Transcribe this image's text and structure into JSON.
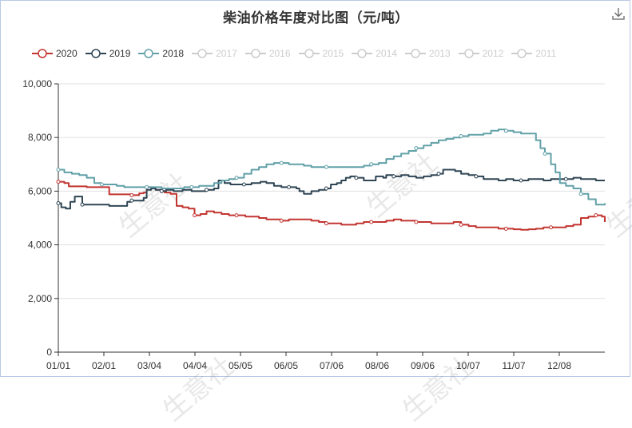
{
  "title": "柴油价格年度对比图（元/吨）",
  "toolbox": {
    "icon": "download-icon"
  },
  "watermark": "生意社",
  "colors": {
    "2020": "#c23531",
    "2019": "#2f4554",
    "2018": "#61a0a8",
    "inactive": "#cccccc"
  },
  "legend": [
    {
      "label": "2020",
      "active": true
    },
    {
      "label": "2019",
      "active": true
    },
    {
      "label": "2018",
      "active": true
    },
    {
      "label": "2017",
      "active": false
    },
    {
      "label": "2016",
      "active": false
    },
    {
      "label": "2015",
      "active": false
    },
    {
      "label": "2014",
      "active": false
    },
    {
      "label": "2013",
      "active": false
    },
    {
      "label": "2012",
      "active": false
    },
    {
      "label": "2011",
      "active": false
    }
  ],
  "chart_data": {
    "type": "line",
    "title": "柴油价格年度对比图（元/吨）",
    "xlabel": "",
    "ylabel": "",
    "x_ticks": [
      "01/01",
      "02/01",
      "03/04",
      "04/04",
      "05/05",
      "06/05",
      "07/06",
      "08/06",
      "09/06",
      "10/07",
      "11/07",
      "12/08"
    ],
    "x_range_days": [
      1,
      366
    ],
    "y_ticks": [
      "0",
      "2,000",
      "4,000",
      "6,000",
      "8,000",
      "10,000"
    ],
    "ylim": [
      0,
      10000
    ],
    "grid": true,
    "legend_position": "top",
    "series": [
      {
        "name": "2020",
        "points": [
          [
            1,
            6350
          ],
          [
            5,
            6300
          ],
          [
            8,
            6180
          ],
          [
            20,
            6150
          ],
          [
            32,
            6150
          ],
          [
            35,
            5880
          ],
          [
            50,
            5850
          ],
          [
            55,
            5920
          ],
          [
            58,
            5950
          ],
          [
            60,
            6150
          ],
          [
            63,
            6100
          ],
          [
            66,
            6050
          ],
          [
            70,
            6000
          ],
          [
            72,
            5950
          ],
          [
            76,
            5900
          ],
          [
            80,
            5450
          ],
          [
            84,
            5400
          ],
          [
            88,
            5350
          ],
          [
            92,
            5100
          ],
          [
            96,
            5150
          ],
          [
            100,
            5250
          ],
          [
            105,
            5200
          ],
          [
            110,
            5150
          ],
          [
            115,
            5100
          ],
          [
            120,
            5100
          ],
          [
            126,
            5050
          ],
          [
            130,
            5050
          ],
          [
            135,
            5000
          ],
          [
            140,
            4950
          ],
          [
            145,
            4950
          ],
          [
            150,
            4900
          ],
          [
            155,
            4950
          ],
          [
            160,
            4950
          ],
          [
            165,
            4950
          ],
          [
            170,
            4900
          ],
          [
            175,
            4850
          ],
          [
            180,
            4800
          ],
          [
            185,
            4800
          ],
          [
            190,
            4750
          ],
          [
            195,
            4750
          ],
          [
            200,
            4800
          ],
          [
            205,
            4850
          ],
          [
            210,
            4850
          ],
          [
            215,
            4850
          ],
          [
            220,
            4900
          ],
          [
            225,
            4950
          ],
          [
            230,
            4900
          ],
          [
            235,
            4900
          ],
          [
            240,
            4850
          ],
          [
            245,
            4850
          ],
          [
            250,
            4800
          ],
          [
            255,
            4800
          ],
          [
            260,
            4800
          ],
          [
            265,
            4850
          ],
          [
            270,
            4750
          ],
          [
            275,
            4700
          ],
          [
            280,
            4650
          ],
          [
            285,
            4650
          ],
          [
            290,
            4650
          ],
          [
            295,
            4600
          ],
          [
            300,
            4600
          ],
          [
            305,
            4580
          ],
          [
            310,
            4560
          ],
          [
            315,
            4580
          ],
          [
            320,
            4600
          ],
          [
            325,
            4650
          ],
          [
            330,
            4650
          ],
          [
            335,
            4650
          ],
          [
            340,
            4700
          ],
          [
            345,
            4750
          ],
          [
            350,
            5000
          ],
          [
            355,
            5050
          ],
          [
            360,
            5100
          ],
          [
            364,
            5050
          ],
          [
            366,
            4850
          ]
        ]
      },
      {
        "name": "2019",
        "points": [
          [
            1,
            5550
          ],
          [
            3,
            5400
          ],
          [
            6,
            5350
          ],
          [
            9,
            5600
          ],
          [
            12,
            5800
          ],
          [
            15,
            5800
          ],
          [
            17,
            5500
          ],
          [
            24,
            5500
          ],
          [
            31,
            5500
          ],
          [
            35,
            5450
          ],
          [
            45,
            5450
          ],
          [
            47,
            5600
          ],
          [
            50,
            5650
          ],
          [
            55,
            5650
          ],
          [
            58,
            5750
          ],
          [
            60,
            6050
          ],
          [
            63,
            6100
          ],
          [
            66,
            6050
          ],
          [
            70,
            6000
          ],
          [
            73,
            6050
          ],
          [
            78,
            6000
          ],
          [
            84,
            6050
          ],
          [
            90,
            6000
          ],
          [
            95,
            6000
          ],
          [
            100,
            6050
          ],
          [
            105,
            6100
          ],
          [
            108,
            6400
          ],
          [
            112,
            6300
          ],
          [
            116,
            6250
          ],
          [
            120,
            6250
          ],
          [
            125,
            6250
          ],
          [
            130,
            6300
          ],
          [
            136,
            6350
          ],
          [
            140,
            6300
          ],
          [
            145,
            6200
          ],
          [
            150,
            6150
          ],
          [
            155,
            6150
          ],
          [
            160,
            6100
          ],
          [
            162,
            6000
          ],
          [
            165,
            5900
          ],
          [
            170,
            6000
          ],
          [
            175,
            6050
          ],
          [
            180,
            6100
          ],
          [
            183,
            6250
          ],
          [
            187,
            6300
          ],
          [
            190,
            6400
          ],
          [
            193,
            6500
          ],
          [
            196,
            6550
          ],
          [
            200,
            6500
          ],
          [
            205,
            6400
          ],
          [
            210,
            6400
          ],
          [
            213,
            6550
          ],
          [
            218,
            6500
          ],
          [
            220,
            6600
          ],
          [
            225,
            6550
          ],
          [
            230,
            6600
          ],
          [
            235,
            6550
          ],
          [
            240,
            6500
          ],
          [
            245,
            6550
          ],
          [
            250,
            6600
          ],
          [
            255,
            6650
          ],
          [
            258,
            6800
          ],
          [
            262,
            6800
          ],
          [
            266,
            6750
          ],
          [
            270,
            6650
          ],
          [
            275,
            6600
          ],
          [
            280,
            6550
          ],
          [
            285,
            6450
          ],
          [
            290,
            6450
          ],
          [
            295,
            6400
          ],
          [
            300,
            6450
          ],
          [
            305,
            6400
          ],
          [
            310,
            6400
          ],
          [
            315,
            6450
          ],
          [
            320,
            6450
          ],
          [
            325,
            6400
          ],
          [
            330,
            6450
          ],
          [
            335,
            6450
          ],
          [
            340,
            6450
          ],
          [
            345,
            6500
          ],
          [
            350,
            6450
          ],
          [
            355,
            6450
          ],
          [
            360,
            6400
          ],
          [
            366,
            6400
          ]
        ]
      },
      {
        "name": "2018",
        "points": [
          [
            1,
            6800
          ],
          [
            5,
            6700
          ],
          [
            10,
            6650
          ],
          [
            15,
            6600
          ],
          [
            20,
            6500
          ],
          [
            25,
            6300
          ],
          [
            30,
            6250
          ],
          [
            35,
            6250
          ],
          [
            40,
            6200
          ],
          [
            45,
            6150
          ],
          [
            50,
            6150
          ],
          [
            55,
            6150
          ],
          [
            60,
            6150
          ],
          [
            65,
            6150
          ],
          [
            70,
            6100
          ],
          [
            75,
            6100
          ],
          [
            80,
            6100
          ],
          [
            85,
            6150
          ],
          [
            90,
            6150
          ],
          [
            95,
            6200
          ],
          [
            100,
            6200
          ],
          [
            105,
            6300
          ],
          [
            110,
            6400
          ],
          [
            115,
            6450
          ],
          [
            120,
            6500
          ],
          [
            125,
            6650
          ],
          [
            130,
            6800
          ],
          [
            135,
            6900
          ],
          [
            140,
            7000
          ],
          [
            145,
            7050
          ],
          [
            150,
            7050
          ],
          [
            155,
            7000
          ],
          [
            160,
            7000
          ],
          [
            165,
            6950
          ],
          [
            170,
            6900
          ],
          [
            175,
            6900
          ],
          [
            180,
            6900
          ],
          [
            185,
            6900
          ],
          [
            190,
            6900
          ],
          [
            195,
            6900
          ],
          [
            200,
            6900
          ],
          [
            205,
            6950
          ],
          [
            210,
            7000
          ],
          [
            215,
            7050
          ],
          [
            220,
            7200
          ],
          [
            225,
            7300
          ],
          [
            230,
            7400
          ],
          [
            235,
            7500
          ],
          [
            240,
            7600
          ],
          [
            245,
            7700
          ],
          [
            250,
            7800
          ],
          [
            255,
            7900
          ],
          [
            260,
            7950
          ],
          [
            265,
            8000
          ],
          [
            270,
            8050
          ],
          [
            275,
            8100
          ],
          [
            280,
            8100
          ],
          [
            285,
            8150
          ],
          [
            290,
            8250
          ],
          [
            295,
            8300
          ],
          [
            300,
            8250
          ],
          [
            305,
            8200
          ],
          [
            310,
            8150
          ],
          [
            315,
            8150
          ],
          [
            320,
            7900
          ],
          [
            323,
            7600
          ],
          [
            326,
            7400
          ],
          [
            330,
            7000
          ],
          [
            333,
            6700
          ],
          [
            336,
            6300
          ],
          [
            340,
            6200
          ],
          [
            345,
            6100
          ],
          [
            350,
            5900
          ],
          [
            355,
            5700
          ],
          [
            360,
            5500
          ],
          [
            366,
            5550
          ]
        ]
      }
    ]
  }
}
